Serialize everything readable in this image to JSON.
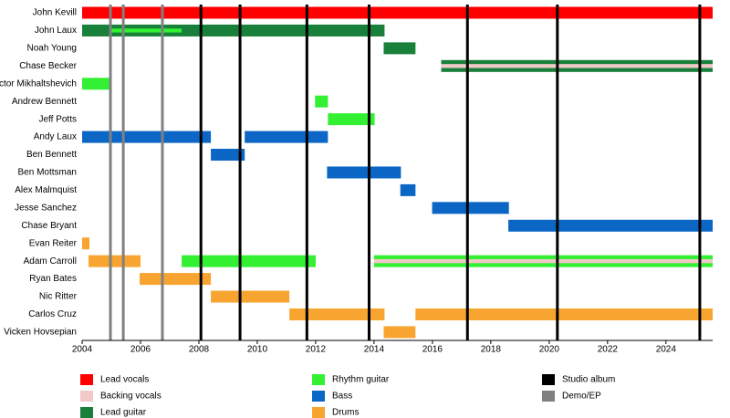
{
  "chart_data": {
    "type": "timeline",
    "categories": [
      "John Kevill",
      "John Laux",
      "Noah Young",
      "Chase Becker",
      "Victor Mikhaltshevich",
      "Andrew Bennett",
      "Jeff Potts",
      "Andy Laux",
      "Ben Bennett",
      "Ben Mottsman",
      "Alex Malmquist",
      "Jesse Sanchez",
      "Chase Bryant",
      "Evan Reiter",
      "Adam Carroll",
      "Ryan Bates",
      "Nic Ritter",
      "Carlos Cruz",
      "Vicken Hovsepian"
    ],
    "series": [
      {
        "name": "Lead vocals",
        "color": "#ff0000",
        "periods": [
          [
            [
              2004,
              2025.6
            ]
          ],
          [],
          [],
          [],
          [],
          [],
          [],
          [],
          [],
          [],
          [],
          [],
          [],
          [],
          [],
          [],
          [],
          [],
          []
        ]
      },
      {
        "name": "Backing vocals",
        "color": "#f2c9c9",
        "periods": [
          [],
          [],
          [],
          [
            [
              2016.3,
              2025.6
            ]
          ],
          [],
          [],
          [],
          [],
          [],
          [],
          [],
          [],
          [],
          [],
          [
            [
              2014,
              2025.6
            ]
          ],
          [],
          [],
          [],
          []
        ]
      },
      {
        "name": "Lead guitar",
        "color": "#18803a",
        "periods": [
          [],
          [
            [
              2004,
              2014.36
            ]
          ],
          [
            [
              2014.33,
              2015.42
            ]
          ],
          [
            [
              2016.3,
              2025.6
            ]
          ],
          [],
          [],
          [],
          [],
          [],
          [],
          [],
          [],
          [],
          [],
          [],
          [],
          [],
          [],
          []
        ]
      },
      {
        "name": "Rhythm guitar",
        "color": "#33f033",
        "periods": [
          [],
          [
            [
              2004.97,
              2007.41
            ]
          ],
          [],
          [],
          [
            [
              2004,
              2005
            ]
          ],
          [
            [
              2011.98,
              2012.42
            ]
          ],
          [
            [
              2012.42,
              2014.02
            ]
          ],
          [],
          [],
          [],
          [],
          [],
          [],
          [],
          [
            [
              2007.41,
              2012
            ],
            [
              2014,
              2025.6
            ]
          ],
          [],
          [],
          [],
          []
        ]
      },
      {
        "name": "Bass",
        "color": "#0b66c6",
        "periods": [
          [],
          [],
          [],
          [],
          [],
          [],
          [],
          [
            [
              2004,
              2008.41
            ],
            [
              2009.57,
              2012.42
            ]
          ],
          [
            [
              2008.41,
              2009.57
            ]
          ],
          [
            [
              2012.39,
              2014.92
            ]
          ],
          [
            [
              2014.9,
              2015.42
            ]
          ],
          [
            [
              2015.99,
              2018.62
            ]
          ],
          [
            [
              2018.6,
              2025.6
            ]
          ],
          [],
          [],
          [],
          [],
          [],
          []
        ]
      },
      {
        "name": "Drums",
        "color": "#f7a530",
        "periods": [
          [],
          [],
          [],
          [],
          [],
          [],
          [],
          [],
          [],
          [],
          [],
          [],
          [],
          [
            [
              2004,
              2004.25
            ]
          ],
          [
            [
              2004.22,
              2006
            ]
          ],
          [
            [
              2005.97,
              2008.41
            ]
          ],
          [
            [
              2008.41,
              2011.1
            ]
          ],
          [
            [
              2011.1,
              2014.36
            ],
            [
              2015.42,
              2025.6
            ]
          ],
          [
            [
              2014.33,
              2015.42
            ]
          ]
        ]
      }
    ],
    "lines": [
      {
        "name": "Studio album",
        "color": "#000000",
        "values": [
          2008.07,
          2009.41,
          2011.7,
          2013.83,
          2017.2,
          2020.28,
          2025.16
        ]
      },
      {
        "name": "Demo/EP",
        "color": "#808080",
        "values": [
          2004.97,
          2005.41,
          2006.75
        ]
      }
    ],
    "xlim": [
      2004,
      2025.6
    ],
    "xticks": [
      2004,
      2006,
      2008,
      2010,
      2012,
      2014,
      2016,
      2018,
      2020,
      2022,
      2024
    ]
  }
}
